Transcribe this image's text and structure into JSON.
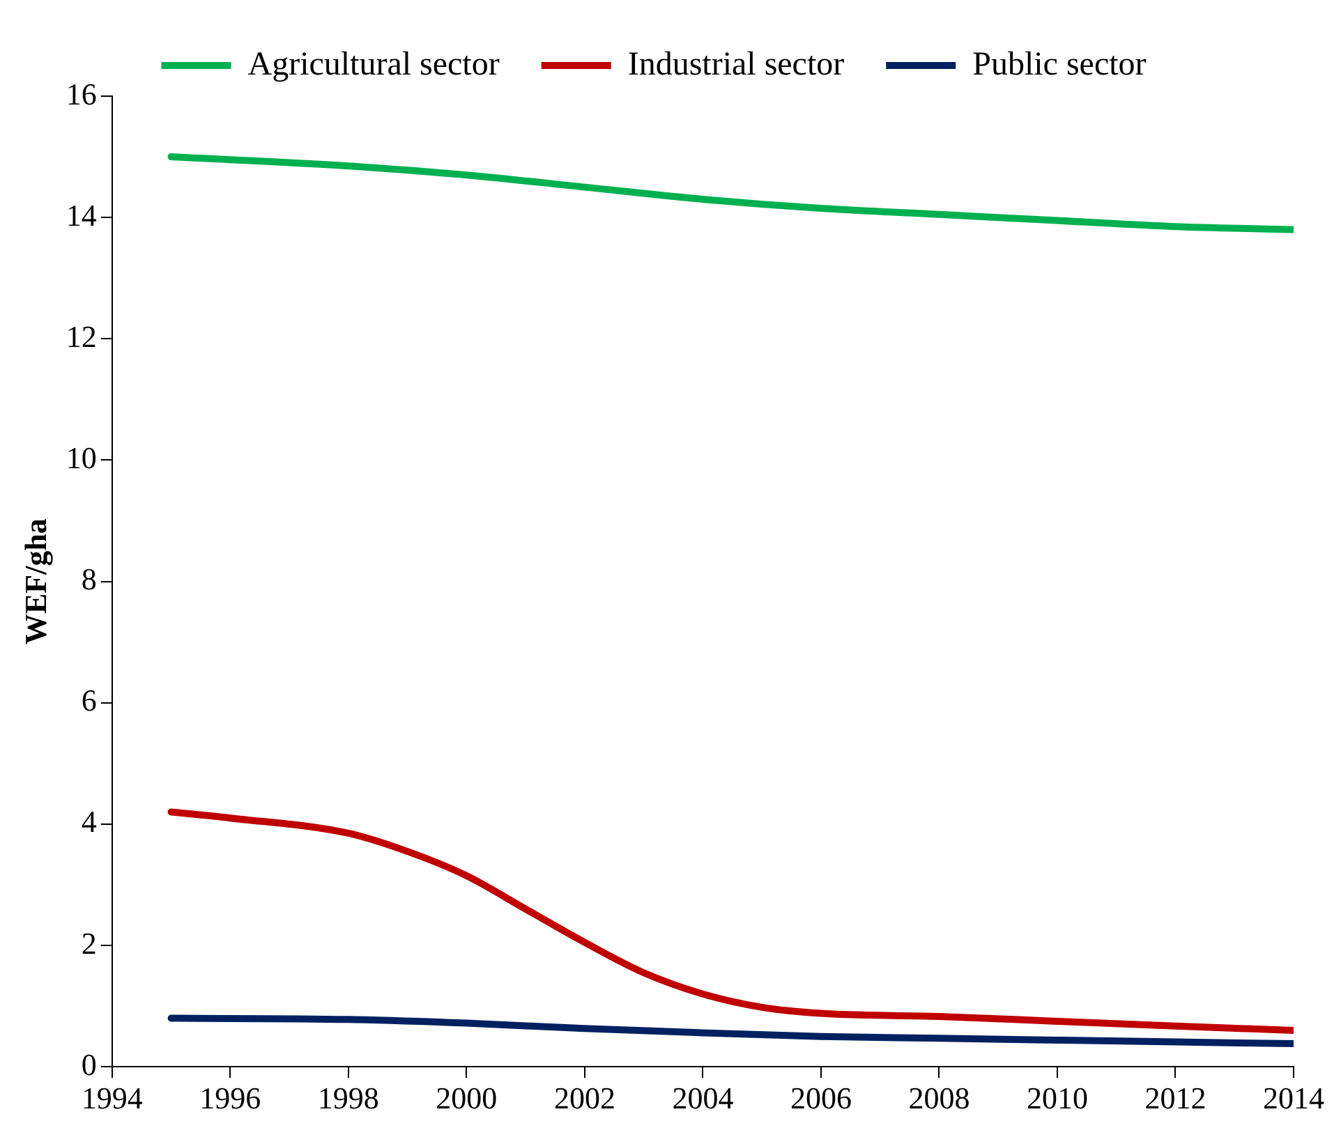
{
  "chart_data": {
    "type": "line",
    "ylabel": "WEF/gha",
    "xlim": [
      1994,
      2014
    ],
    "xticks": [
      1994,
      1996,
      1998,
      2000,
      2002,
      2004,
      2006,
      2008,
      2010,
      2012,
      2014
    ],
    "ylim": [
      0,
      16
    ],
    "yticks": [
      0,
      2,
      4,
      6,
      8,
      10,
      12,
      14,
      16
    ],
    "grid": false,
    "legend": "top",
    "marker": "none",
    "line_style": "solid",
    "series": [
      {
        "name": "Agricultural sector",
        "color": "#00b050",
        "x": [
          1995,
          1998,
          2000,
          2002,
          2004,
          2006,
          2008,
          2010,
          2012,
          2014
        ],
        "values": [
          15.0,
          14.85,
          14.7,
          14.5,
          14.3,
          14.15,
          14.05,
          13.95,
          13.85,
          13.8
        ]
      },
      {
        "name": "Industrial sector",
        "color": "#c00000",
        "x": [
          1995,
          1996,
          1998,
          1999,
          2000,
          2001,
          2002,
          2003,
          2004,
          2005,
          2006,
          2008,
          2010,
          2012,
          2014
        ],
        "values": [
          4.2,
          4.1,
          3.85,
          3.55,
          3.15,
          2.6,
          2.05,
          1.55,
          1.2,
          0.98,
          0.88,
          0.83,
          0.75,
          0.67,
          0.6
        ]
      },
      {
        "name": "Public sector",
        "color": "#002060",
        "x": [
          1995,
          1998,
          2000,
          2002,
          2004,
          2006,
          2008,
          2010,
          2012,
          2014
        ],
        "values": [
          0.8,
          0.78,
          0.72,
          0.63,
          0.56,
          0.5,
          0.47,
          0.44,
          0.41,
          0.38
        ]
      }
    ]
  }
}
